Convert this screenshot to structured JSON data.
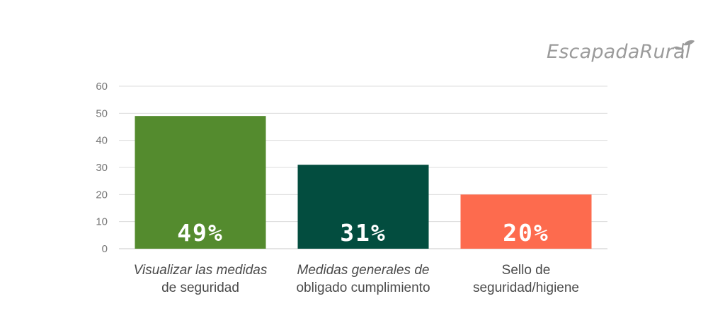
{
  "brand": {
    "logo_text": "EscapadaRural",
    "logo_color": "#9b9b9b"
  },
  "chart_data": {
    "type": "bar",
    "categories": [
      [
        "Visualizar las medidas",
        "de seguridad"
      ],
      [
        "Medidas generales de",
        "obligado cumplimiento"
      ],
      [
        "Sello de",
        "seguridad/higiene"
      ]
    ],
    "category_italic": [
      true,
      true,
      false
    ],
    "values": [
      49,
      31,
      20
    ],
    "data_labels": [
      "49%",
      "31%",
      "20%"
    ],
    "colors": [
      "#548b2e",
      "#034d3f",
      "#fd6b4e"
    ],
    "ylim": [
      0,
      60
    ],
    "yticks": [
      0,
      10,
      20,
      30,
      40,
      50,
      60
    ],
    "grid": true,
    "xlabel": "",
    "ylabel": ""
  }
}
